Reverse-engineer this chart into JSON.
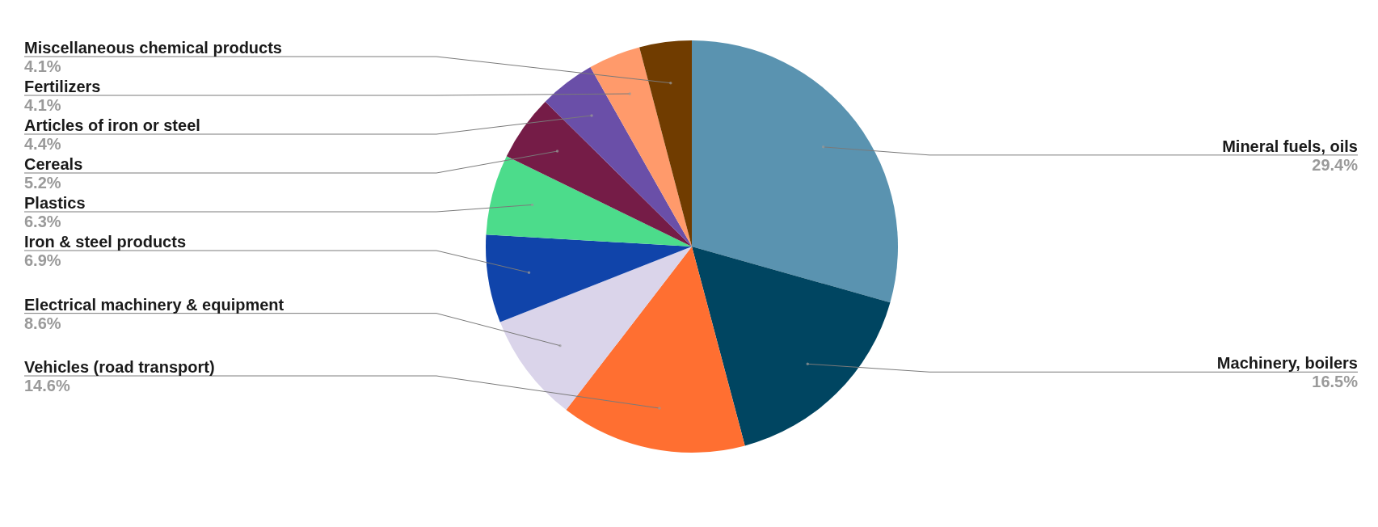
{
  "chart_data": {
    "type": "pie",
    "categories": [
      "Mineral fuels, oils",
      "Machinery, boilers",
      "Vehicles (road transport)",
      "Electrical machinery & equipment",
      "Iron & steel products",
      "Plastics",
      "Cereals",
      "Articles of iron or steel",
      "Fertilizers",
      "Miscellaneous chemical products"
    ],
    "values": [
      29.4,
      16.5,
      14.6,
      8.6,
      6.9,
      6.3,
      5.2,
      4.4,
      4.1,
      4.1
    ],
    "colors": [
      "#5a93b0",
      "#004561",
      "#ff6f31",
      "#dad4ea",
      "#1044aa",
      "#4cdc8b",
      "#751c47",
      "#6a4fa8",
      "#ff9a6b",
      "#703c00"
    ],
    "value_labels": [
      "29.4%",
      "16.5%",
      "14.6%",
      "8.6%",
      "6.9%",
      "6.3%",
      "5.2%",
      "4.4%",
      "4.1%",
      "4.1%"
    ]
  }
}
